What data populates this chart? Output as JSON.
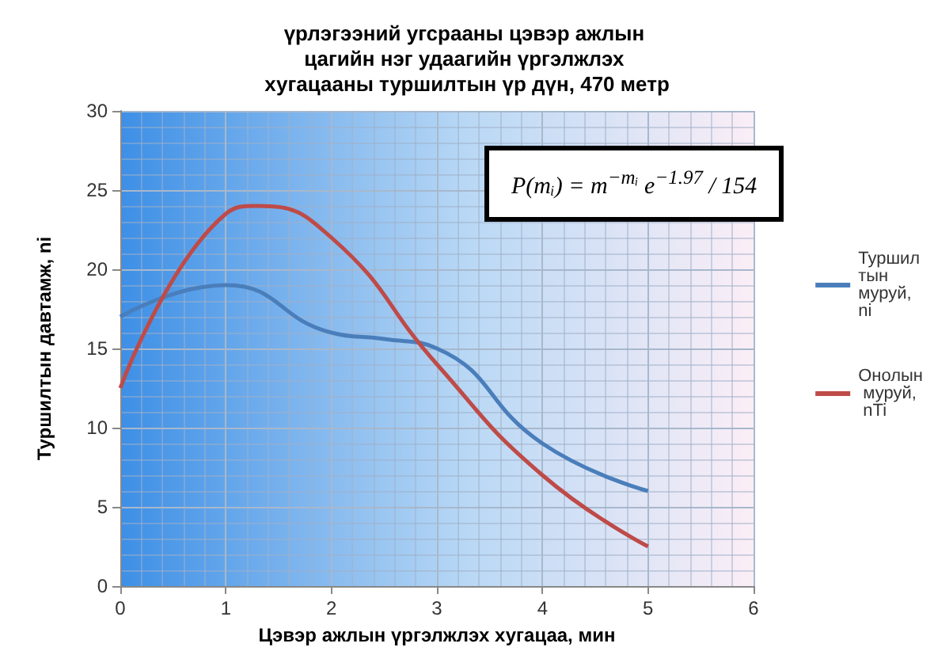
{
  "chart_data": {
    "type": "line",
    "title": "үрлэгээний угсрааны цэвэр ажлын цагийн нэг удаагийн үргэлжлэх хугацааны туршилтын үр дүн, 470 метр",
    "xlabel": "Цэвэр ажлын үргэлжлэх хугацаа, мин",
    "ylabel": "Туршилтын давтамж, ni",
    "x": [
      0,
      1,
      2,
      2.5,
      3,
      4,
      5
    ],
    "series": [
      {
        "name": "Туршилтын муруй, ni",
        "color": "#4a7ebb",
        "values": [
          17,
          19,
          16,
          15.6,
          15,
          9,
          6
        ]
      },
      {
        "name": "Онолын муруй, nTi",
        "color": "#be4b48",
        "x": [
          0,
          1,
          1.3,
          2,
          3,
          4,
          5
        ],
        "values": [
          12.5,
          23.5,
          24,
          22,
          14,
          7,
          2.5
        ]
      }
    ],
    "xlim": [
      0,
      6
    ],
    "xticks": [
      0,
      1,
      2,
      3,
      4,
      5,
      6
    ],
    "ylim": [
      0,
      30
    ],
    "yticks": [
      0,
      5,
      10,
      15,
      20,
      25,
      30
    ],
    "grid": true,
    "legend": "right",
    "marker": "none",
    "line_style": "solid",
    "annotations": [
      "P(mᵢ) = m$^{−mᵢ}$ e$^{−1.97}$ / 154"
    ]
  }
}
